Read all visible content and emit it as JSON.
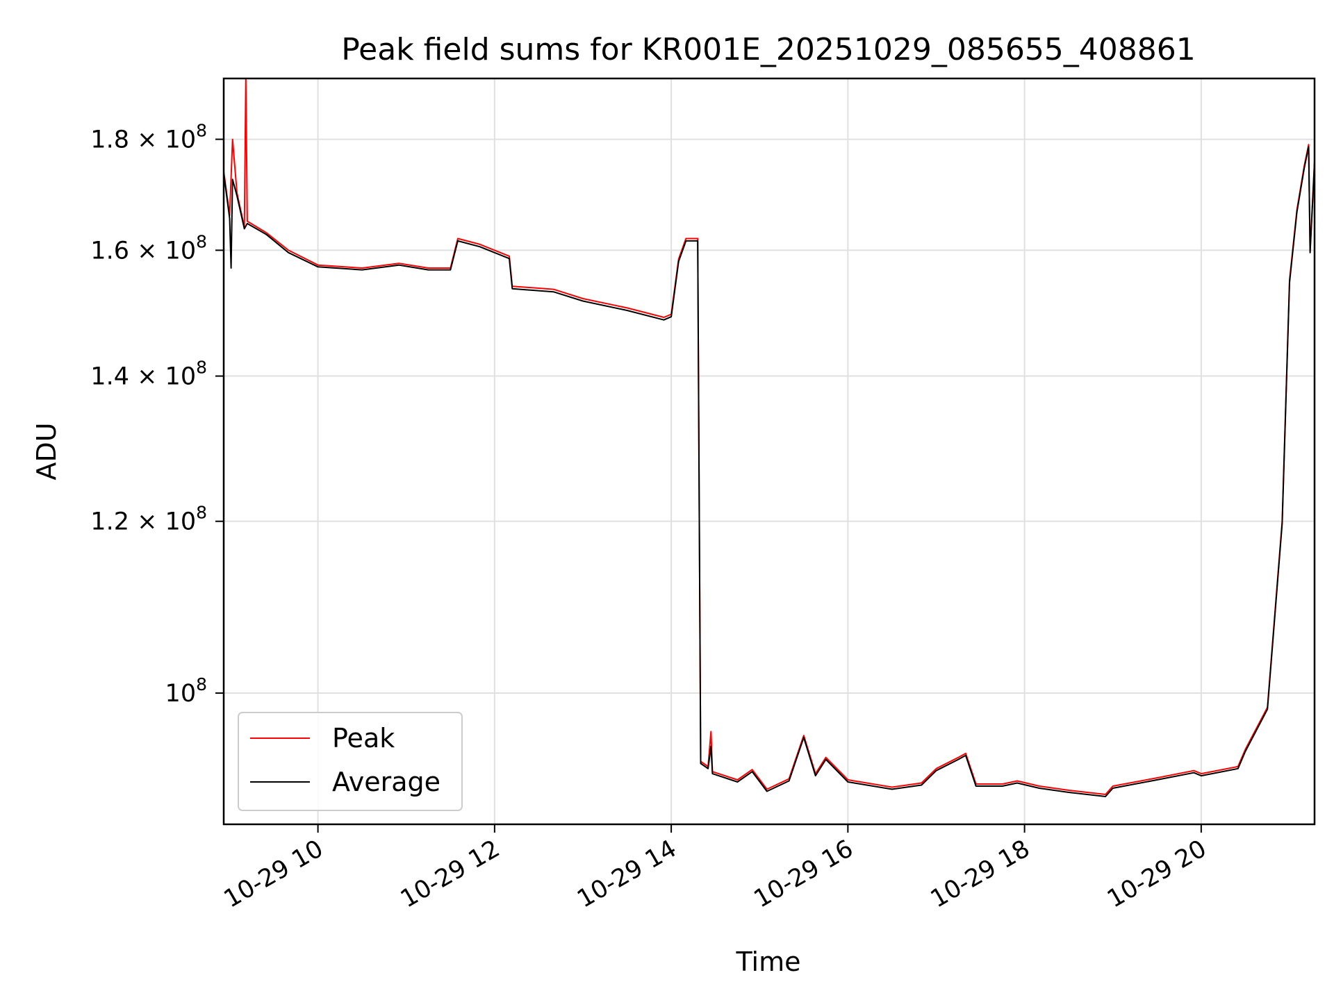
{
  "chart_data": {
    "type": "line",
    "title": "Peak field sums for KR001E_20251029_085655_408861",
    "xlabel": "Time",
    "ylabel": "ADU",
    "x_unit": "date-time",
    "xlim": [
      "2025-10-29 08:56",
      "2025-10-29 21:17"
    ],
    "ylim": [
      87000000,
      192000000
    ],
    "yscale": "log",
    "x_ticks": [
      {
        "value": "2025-10-29 10:00",
        "label": "10-29 10"
      },
      {
        "value": "2025-10-29 12:00",
        "label": "10-29 12"
      },
      {
        "value": "2025-10-29 14:00",
        "label": "10-29 14"
      },
      {
        "value": "2025-10-29 16:00",
        "label": "10-29 16"
      },
      {
        "value": "2025-10-29 18:00",
        "label": "10-29 18"
      },
      {
        "value": "2025-10-29 20:00",
        "label": "10-29 20"
      }
    ],
    "y_ticks": [
      {
        "value": 100000000,
        "mantissa": "",
        "base": "10",
        "exp": "8"
      },
      {
        "value": 120000000,
        "mantissa": "1.2",
        "base": "10",
        "exp": "8"
      },
      {
        "value": 140000000,
        "mantissa": "1.4",
        "base": "10",
        "exp": "8"
      },
      {
        "value": 160000000,
        "mantissa": "1.6",
        "base": "10",
        "exp": "8"
      },
      {
        "value": 180000000,
        "mantissa": "1.8",
        "base": "10",
        "exp": "8"
      }
    ],
    "grid": true,
    "legend": "lower-left",
    "series": [
      {
        "name": "Peak",
        "color": "#ff0000",
        "points": [
          [
            "2025-10-29 08:56",
            174000000
          ],
          [
            "2025-10-29 09:00",
            166000000
          ],
          [
            "2025-10-29 09:02",
            180000000
          ],
          [
            "2025-10-29 09:05",
            170000000
          ],
          [
            "2025-10-29 09:10",
            164000000
          ],
          [
            "2025-10-29 09:11",
            192000000
          ],
          [
            "2025-10-29 09:12",
            165000000
          ],
          [
            "2025-10-29 09:25",
            163000000
          ],
          [
            "2025-10-29 09:40",
            160000000
          ],
          [
            "2025-10-29 10:00",
            157500000
          ],
          [
            "2025-10-29 10:30",
            157000000
          ],
          [
            "2025-10-29 10:55",
            157800000
          ],
          [
            "2025-10-29 11:15",
            157000000
          ],
          [
            "2025-10-29 11:30",
            157000000
          ],
          [
            "2025-10-29 11:35",
            162000000
          ],
          [
            "2025-10-29 11:50",
            161000000
          ],
          [
            "2025-10-29 12:10",
            159000000
          ],
          [
            "2025-10-29 12:12",
            154000000
          ],
          [
            "2025-10-29 12:40",
            153500000
          ],
          [
            "2025-10-29 13:00",
            152000000
          ],
          [
            "2025-10-29 13:30",
            150500000
          ],
          [
            "2025-10-29 13:55",
            149000000
          ],
          [
            "2025-10-29 14:00",
            149500000
          ],
          [
            "2025-10-29 14:05",
            158500000
          ],
          [
            "2025-10-29 14:10",
            162000000
          ],
          [
            "2025-10-29 14:18",
            162000000
          ],
          [
            "2025-10-29 14:20",
            93000000
          ],
          [
            "2025-10-29 14:25",
            92500000
          ],
          [
            "2025-10-29 14:27",
            96000000
          ],
          [
            "2025-10-29 14:28",
            92000000
          ],
          [
            "2025-10-29 14:45",
            91200000
          ],
          [
            "2025-10-29 14:55",
            92200000
          ],
          [
            "2025-10-29 15:05",
            90300000
          ],
          [
            "2025-10-29 15:20",
            91300000
          ],
          [
            "2025-10-29 15:30",
            95600000
          ],
          [
            "2025-10-29 15:38",
            91800000
          ],
          [
            "2025-10-29 15:45",
            93400000
          ],
          [
            "2025-10-29 16:00",
            91200000
          ],
          [
            "2025-10-29 16:30",
            90500000
          ],
          [
            "2025-10-29 16:50",
            90900000
          ],
          [
            "2025-10-29 17:00",
            92300000
          ],
          [
            "2025-10-29 17:15",
            93400000
          ],
          [
            "2025-10-29 17:20",
            93800000
          ],
          [
            "2025-10-29 17:27",
            90800000
          ],
          [
            "2025-10-29 17:45",
            90800000
          ],
          [
            "2025-10-29 17:55",
            91100000
          ],
          [
            "2025-10-29 18:10",
            90600000
          ],
          [
            "2025-10-29 18:30",
            90200000
          ],
          [
            "2025-10-29 18:55",
            89800000
          ],
          [
            "2025-10-29 19:00",
            90600000
          ],
          [
            "2025-10-29 19:30",
            91400000
          ],
          [
            "2025-10-29 19:55",
            92100000
          ],
          [
            "2025-10-29 20:00",
            91800000
          ],
          [
            "2025-10-29 20:25",
            92500000
          ],
          [
            "2025-10-29 20:30",
            94200000
          ],
          [
            "2025-10-29 20:45",
            98500000
          ],
          [
            "2025-10-29 20:55",
            120000000
          ],
          [
            "2025-10-29 21:00",
            155000000
          ],
          [
            "2025-10-29 21:05",
            167000000
          ],
          [
            "2025-10-29 21:10",
            175000000
          ],
          [
            "2025-10-29 21:13",
            179000000
          ],
          [
            "2025-10-29 21:14",
            160000000
          ],
          [
            "2025-10-29 21:17",
            176000000
          ]
        ]
      },
      {
        "name": "Average",
        "color": "#000000",
        "points": [
          [
            "2025-10-29 08:56",
            173600000
          ],
          [
            "2025-10-29 09:00",
            165500000
          ],
          [
            "2025-10-29 09:01",
            157000000
          ],
          [
            "2025-10-29 09:02",
            172500000
          ],
          [
            "2025-10-29 09:05",
            169500000
          ],
          [
            "2025-10-29 09:10",
            163700000
          ],
          [
            "2025-10-29 09:12",
            164600000
          ],
          [
            "2025-10-29 09:25",
            162700000
          ],
          [
            "2025-10-29 09:40",
            159600000
          ],
          [
            "2025-10-29 10:00",
            157200000
          ],
          [
            "2025-10-29 10:30",
            156700000
          ],
          [
            "2025-10-29 10:55",
            157500000
          ],
          [
            "2025-10-29 11:15",
            156700000
          ],
          [
            "2025-10-29 11:30",
            156700000
          ],
          [
            "2025-10-29 11:35",
            161600000
          ],
          [
            "2025-10-29 11:50",
            160600000
          ],
          [
            "2025-10-29 12:10",
            158600000
          ],
          [
            "2025-10-29 12:12",
            153600000
          ],
          [
            "2025-10-29 12:40",
            153100000
          ],
          [
            "2025-10-29 13:00",
            151600000
          ],
          [
            "2025-10-29 13:30",
            150100000
          ],
          [
            "2025-10-29 13:55",
            148600000
          ],
          [
            "2025-10-29 14:00",
            149100000
          ],
          [
            "2025-10-29 14:05",
            158100000
          ],
          [
            "2025-10-29 14:10",
            161600000
          ],
          [
            "2025-10-29 14:18",
            161600000
          ],
          [
            "2025-10-29 14:20",
            92800000
          ],
          [
            "2025-10-29 14:25",
            92300000
          ],
          [
            "2025-10-29 14:27",
            94500000
          ],
          [
            "2025-10-29 14:28",
            91800000
          ],
          [
            "2025-10-29 14:45",
            91000000
          ],
          [
            "2025-10-29 14:55",
            92000000
          ],
          [
            "2025-10-29 15:05",
            90100000
          ],
          [
            "2025-10-29 15:20",
            91100000
          ],
          [
            "2025-10-29 15:30",
            95400000
          ],
          [
            "2025-10-29 15:38",
            91600000
          ],
          [
            "2025-10-29 15:45",
            93200000
          ],
          [
            "2025-10-29 16:00",
            91000000
          ],
          [
            "2025-10-29 16:30",
            90300000
          ],
          [
            "2025-10-29 16:50",
            90700000
          ],
          [
            "2025-10-29 17:00",
            92100000
          ],
          [
            "2025-10-29 17:15",
            93200000
          ],
          [
            "2025-10-29 17:20",
            93600000
          ],
          [
            "2025-10-29 17:27",
            90600000
          ],
          [
            "2025-10-29 17:45",
            90600000
          ],
          [
            "2025-10-29 17:55",
            90900000
          ],
          [
            "2025-10-29 18:10",
            90400000
          ],
          [
            "2025-10-29 18:30",
            90000000
          ],
          [
            "2025-10-29 18:55",
            89600000
          ],
          [
            "2025-10-29 19:00",
            90400000
          ],
          [
            "2025-10-29 19:30",
            91200000
          ],
          [
            "2025-10-29 19:55",
            91900000
          ],
          [
            "2025-10-29 20:00",
            91600000
          ],
          [
            "2025-10-29 20:25",
            92300000
          ],
          [
            "2025-10-29 20:30",
            94000000
          ],
          [
            "2025-10-29 20:45",
            98300000
          ],
          [
            "2025-10-29 20:55",
            119700000
          ],
          [
            "2025-10-29 21:00",
            154600000
          ],
          [
            "2025-10-29 21:05",
            166600000
          ],
          [
            "2025-10-29 21:10",
            174600000
          ],
          [
            "2025-10-29 21:13",
            178600000
          ],
          [
            "2025-10-29 21:14",
            159600000
          ],
          [
            "2025-10-29 21:17",
            175600000
          ]
        ]
      }
    ]
  }
}
